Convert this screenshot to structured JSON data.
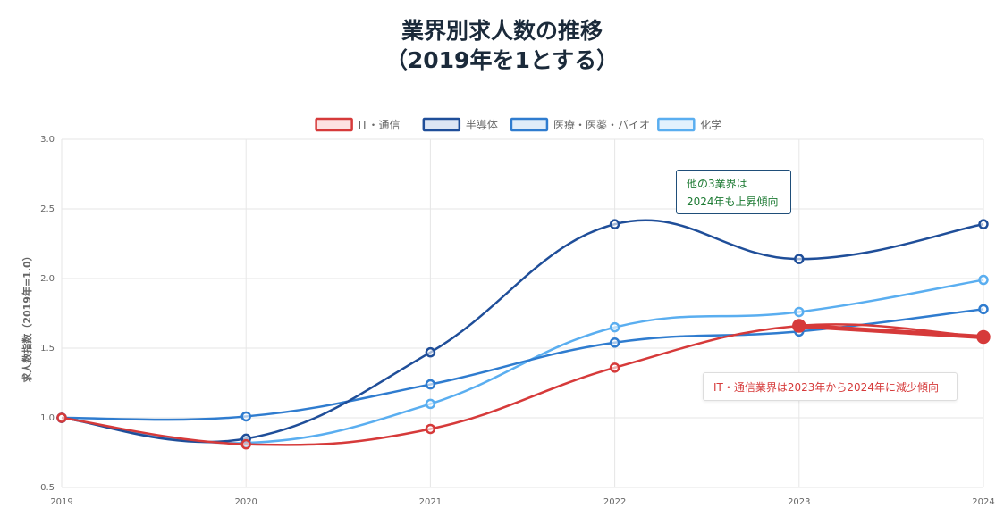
{
  "title_line1": "業界別求人数の推移",
  "title_line2": "（2019年を1とする）",
  "chart_data": {
    "type": "line",
    "title": "業界別求人数の推移（2019年を1とする）",
    "xlabel": "",
    "ylabel": "求人数指数（2019年=1.0）",
    "categories": [
      "2019",
      "2020",
      "2021",
      "2022",
      "2023",
      "2024"
    ],
    "ylim": [
      0.5,
      3.0
    ],
    "yticks": [
      "0.5",
      "1.0",
      "1.5",
      "2.0",
      "2.5",
      "3.0"
    ],
    "grid": true,
    "legend_position": "top",
    "series": [
      {
        "name": "IT・通信",
        "values": [
          1.0,
          0.81,
          0.92,
          1.36,
          1.66,
          1.58
        ],
        "color": "#d63a3a",
        "fill": "#fde2e2",
        "highlight_last_two": true
      },
      {
        "name": "半導体",
        "values": [
          1.0,
          0.85,
          1.47,
          2.39,
          2.14,
          2.39
        ],
        "color": "#1f4e99",
        "fill": "#dde6f4"
      },
      {
        "name": "医療・医薬・バイオ",
        "values": [
          1.0,
          1.01,
          1.24,
          1.54,
          1.62,
          1.78
        ],
        "color": "#2f7ccf",
        "fill": "#dfecf9"
      },
      {
        "name": "化学",
        "values": [
          1.0,
          0.82,
          1.1,
          1.65,
          1.76,
          1.99
        ],
        "color": "#5aaef0",
        "fill": "#e3f1fd"
      }
    ],
    "annotations": [
      {
        "text_line1": "他の3業界は",
        "text_line2": "2024年も上昇傾向",
        "color": "#1e7b34"
      },
      {
        "text": "IT・通信業界は2023年から2024年に減少傾向",
        "color": "#d63a3a"
      }
    ]
  }
}
